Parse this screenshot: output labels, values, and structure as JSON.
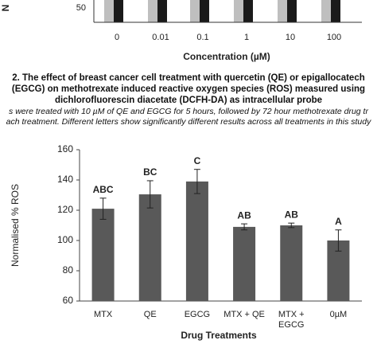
{
  "top_figure": {
    "ylabel": "N",
    "yticks": [
      50
    ],
    "categories": [
      "0",
      "0.01",
      "0.1",
      "1",
      "10",
      "100"
    ],
    "xlabel": "Concentration (µM)"
  },
  "caption": {
    "title_lines": [
      "2. The effect of breast cancer cell treatment with quercetin (QE) or epigallocatech",
      "(EGCG) on methotrexate induced reactive oxygen species (ROS) measured using",
      "dichlorofluorescin diacetate (DCFH-DA) as intracellular probe"
    ],
    "note_lines": [
      "s were treated with 10 µM of QE and EGCG for 5 hours, followed by 72 hour methotrexate drug tr",
      "ach treatment. Different letters show significantly different results across all treatments in this study"
    ]
  },
  "chart_data": {
    "type": "bar",
    "ylabel": "Normalised % ROS",
    "xlabel": "Drug Treatments",
    "categories": [
      "MTX",
      "QE",
      "EGCG",
      "MTX + QE",
      "MTX + EGCG",
      "0µM"
    ],
    "values": [
      121,
      130.5,
      139,
      109,
      110,
      100
    ],
    "errors": [
      7,
      9,
      8,
      2,
      1.5,
      7
    ],
    "letters": [
      "ABC",
      "BC",
      "C",
      "AB",
      "AB",
      "A"
    ],
    "color": "#595959",
    "ylim": [
      60,
      160
    ],
    "yticks": [
      60,
      80,
      100,
      120,
      140,
      160
    ]
  }
}
